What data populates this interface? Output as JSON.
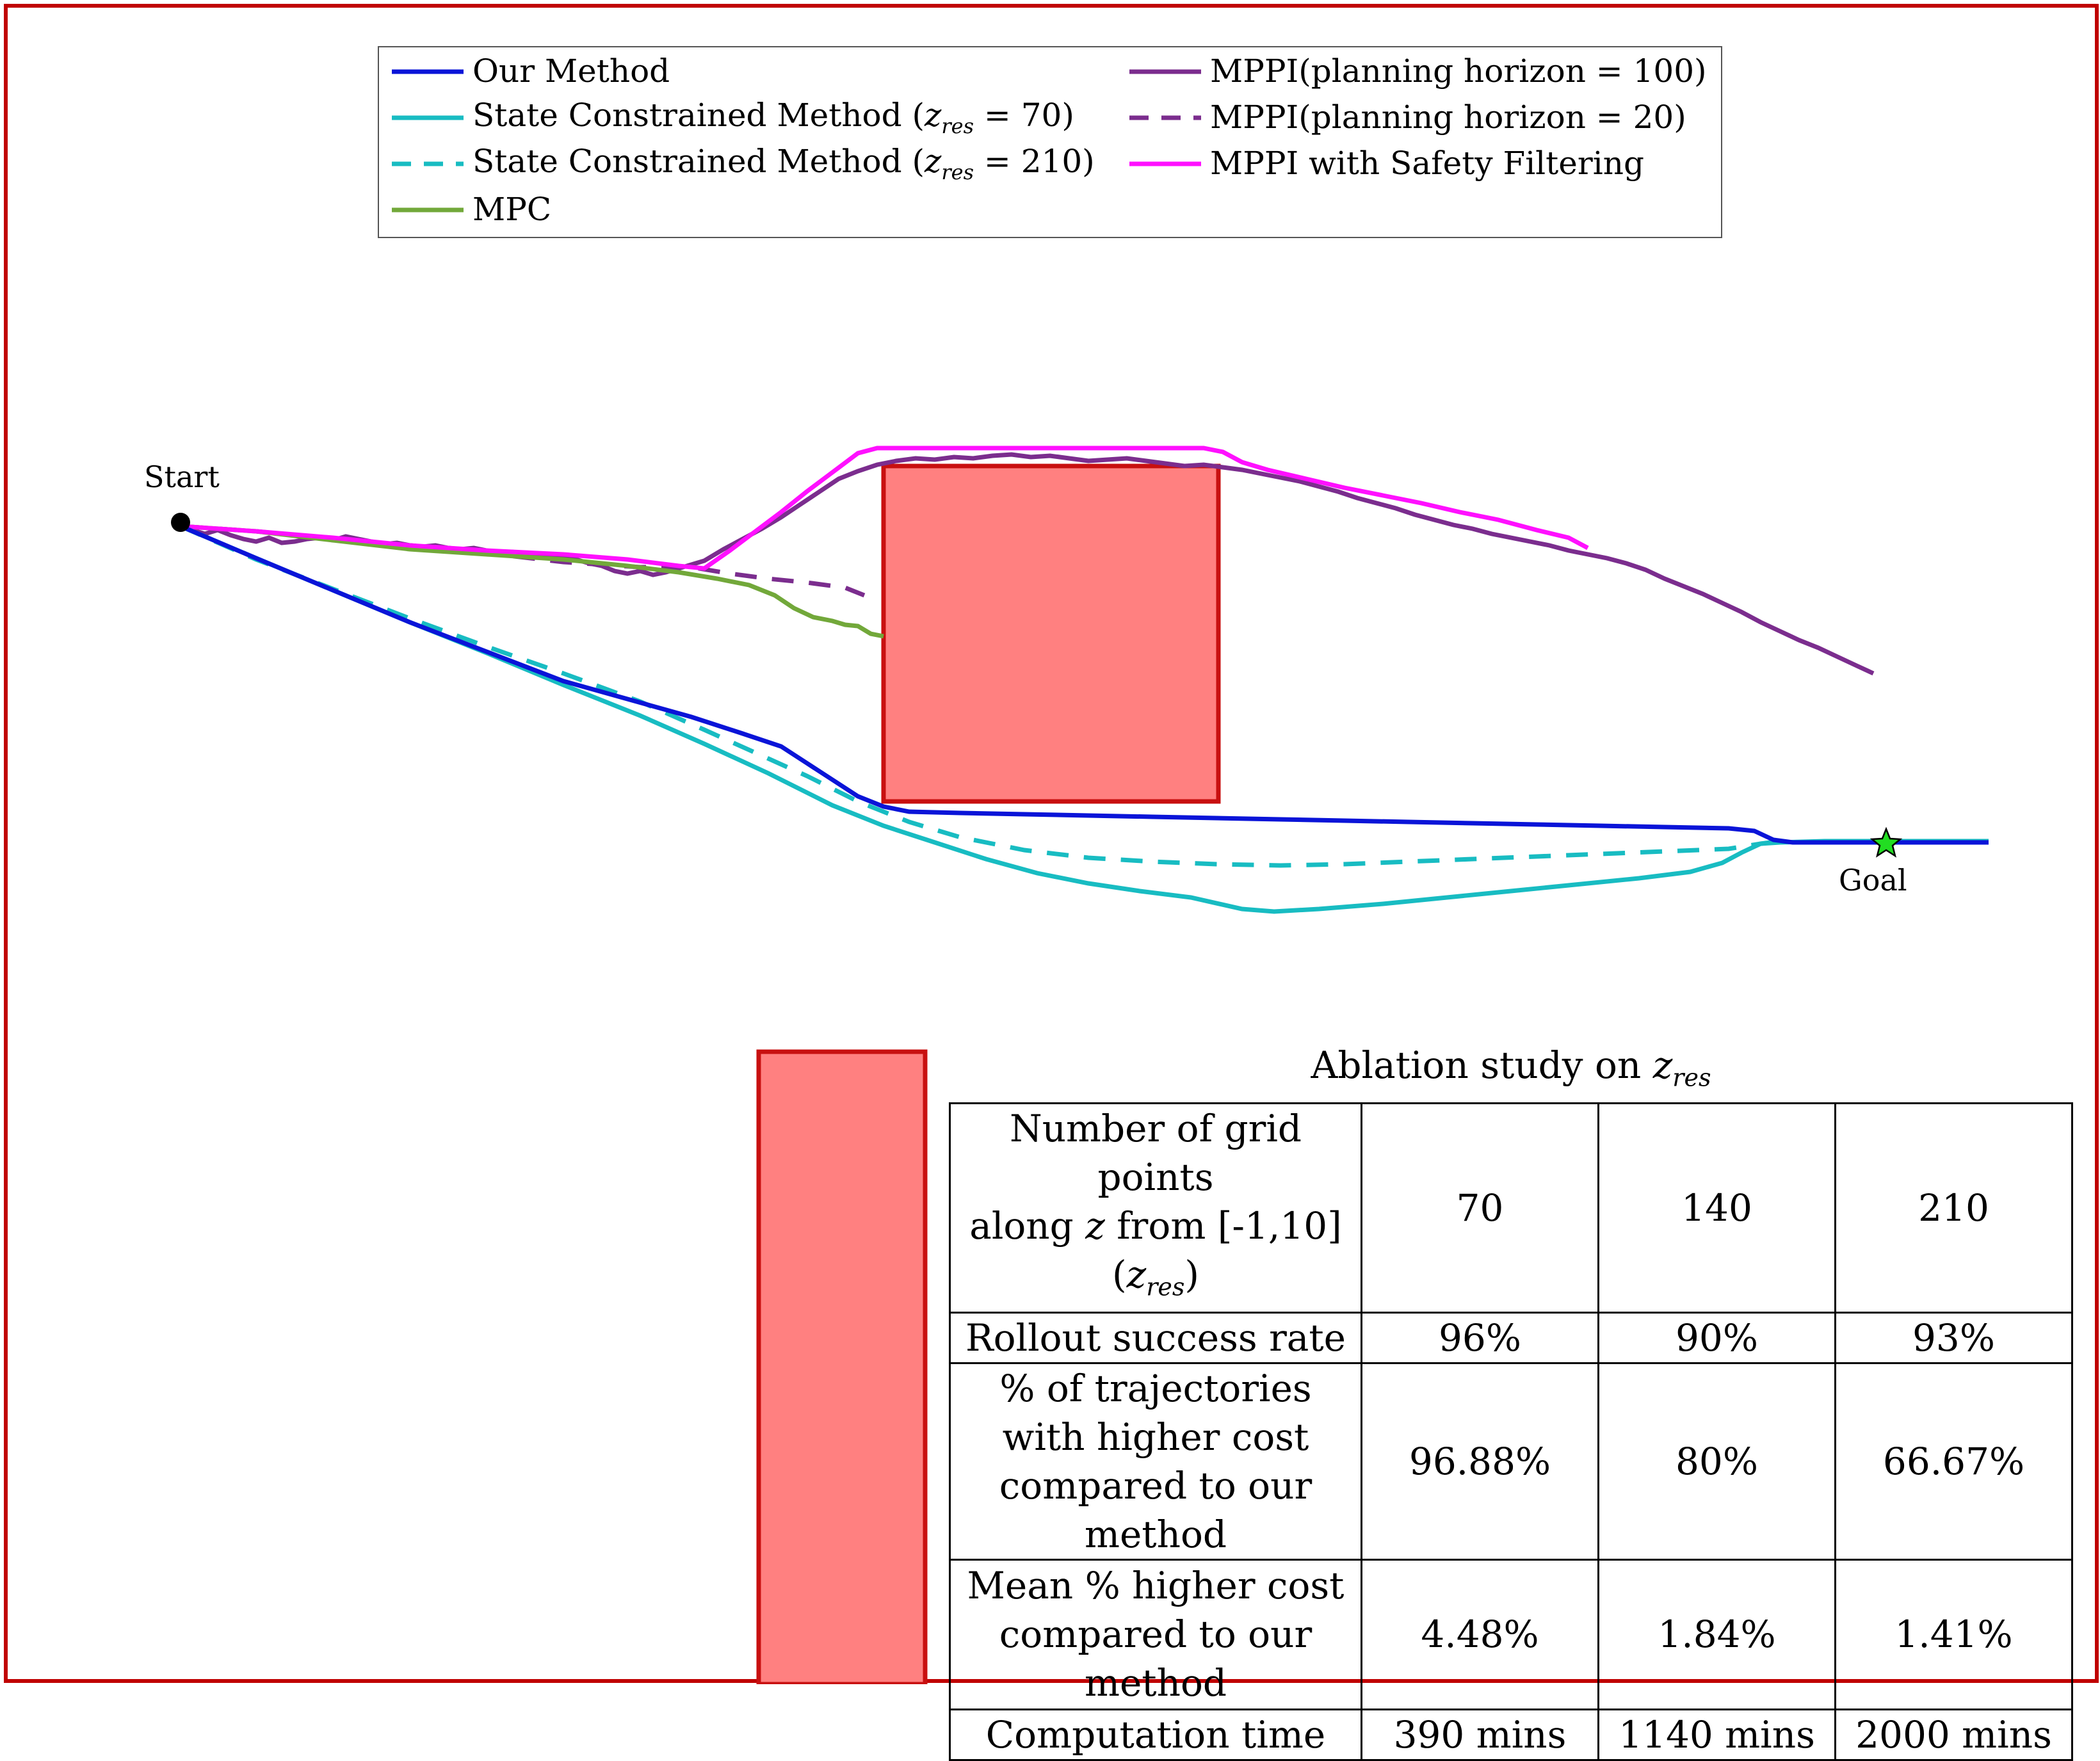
{
  "colors": {
    "frame": "#c00000",
    "obstacle_fill": "#ff8080",
    "obstacle_stroke": "#c81010",
    "our_method": "#0a14d8",
    "state_constrained": "#18bcc2",
    "mpc": "#72a83a",
    "mppi": "#7b2d8e",
    "mppi_safety": "#ff10ff",
    "start_marker": "#000000",
    "goal_marker": "#22dd22"
  },
  "legend": {
    "items": [
      {
        "text": "Our Method",
        "sub": "",
        "tail": "",
        "style": "solid",
        "color": "#0a14d8"
      },
      {
        "text": "State Constrained Method (",
        "sub": "res",
        "tail": " = 70)",
        "style": "solid",
        "color": "#18bcc2"
      },
      {
        "text": "State Constrained Method (",
        "sub": "res",
        "tail": " = 210)",
        "style": "dashed",
        "color": "#18bcc2"
      },
      {
        "text": "MPC",
        "sub": "",
        "tail": "",
        "style": "solid",
        "color": "#72a83a"
      },
      {
        "text": "MPPI(planning horizon = 100)",
        "sub": "",
        "tail": "",
        "style": "solid",
        "color": "#7b2d8e"
      },
      {
        "text": "MPPI(planning horizon = 20)",
        "sub": "",
        "tail": "",
        "style": "dashed",
        "color": "#7b2d8e"
      },
      {
        "text": "MPPI with Safety Filtering",
        "sub": "",
        "tail": "",
        "style": "solid",
        "color": "#ff10ff"
      }
    ]
  },
  "labels": {
    "start": "Start",
    "goal": "Goal"
  },
  "icons": {
    "start": "filled-circle",
    "goal": "star"
  },
  "table": {
    "title_prefix": "Ablation study on ",
    "title_var": "z",
    "title_sub": "res",
    "header": {
      "line1": "Number of grid points",
      "line2_pre": "along ",
      "line2_var": "z",
      "line2_post": " from [-1,10]",
      "line3_var": "z",
      "line3_sub": "res",
      "cols": [
        "70",
        "140",
        "210"
      ]
    },
    "rows": [
      {
        "label": "Rollout success rate",
        "values": [
          "96%",
          "90%",
          "93%"
        ]
      },
      {
        "label": "% of trajectories with higher cost compared to our method",
        "values": [
          "96.88%",
          "80%",
          "66.67%"
        ]
      },
      {
        "label": "Mean % higher cost compared to our method",
        "values": [
          "4.48%",
          "1.84%",
          "1.41%"
        ]
      },
      {
        "label": "Computation time",
        "values": [
          "390 mins",
          "1140 mins",
          "2000 mins"
        ]
      }
    ]
  }
}
